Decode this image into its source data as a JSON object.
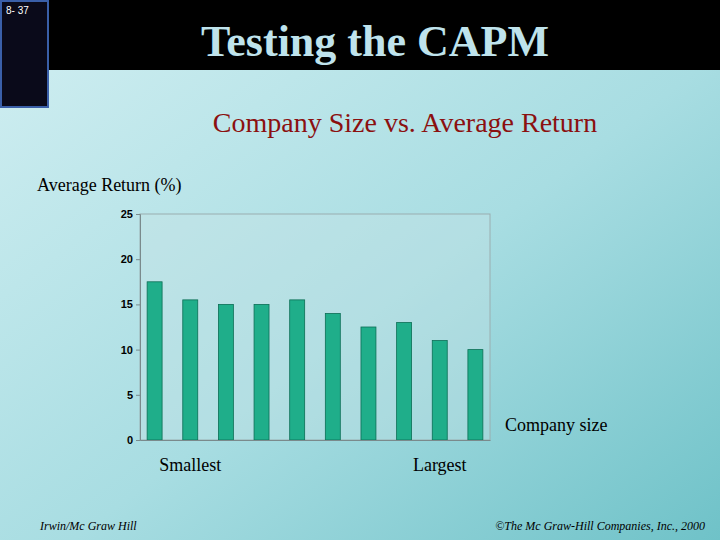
{
  "header": {
    "slide_number": "8- 37"
  },
  "chart_data": {
    "type": "bar",
    "title": "Testing the CAPM",
    "subtitle": "Company Size vs. Average Return",
    "y_label": "Average Return (%)",
    "x_label": "Company size",
    "categories": [
      null,
      "Smallest",
      null,
      null,
      null,
      null,
      null,
      null,
      "Largest",
      null
    ],
    "values": [
      17.5,
      15.5,
      15,
      15,
      15.5,
      14,
      12.5,
      13,
      11,
      10
    ],
    "color": "#1fae8a",
    "ylim": [
      0,
      25
    ],
    "yticks": [
      0,
      5,
      10,
      15,
      20,
      25
    ],
    "grid": false
  },
  "footer": {
    "left": "Irwin/Mc Graw Hill",
    "right": "©The Mc Graw-Hill Companies, Inc., 2000"
  }
}
